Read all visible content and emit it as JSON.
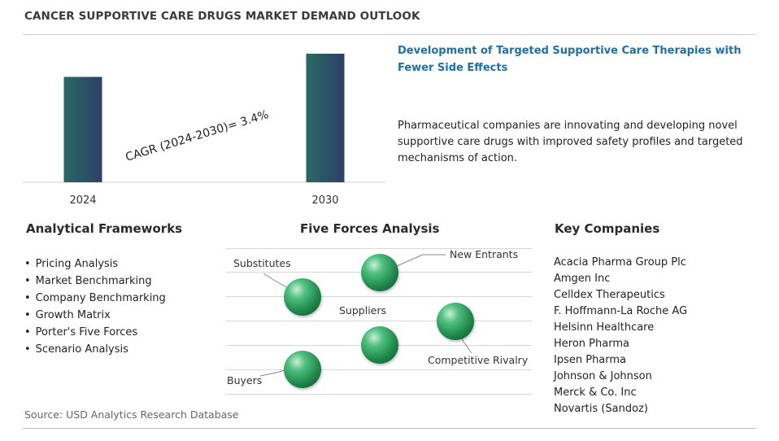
{
  "title": "CANCER SUPPORTIVE CARE DRUGS MARKET DEMAND OUTLOOK",
  "chart_data": {
    "type": "bar",
    "categories": [
      "2024",
      "2030"
    ],
    "values": [
      1.0,
      1.22
    ],
    "annotation": "CAGR (2024-2030)=  3.4%",
    "colors": [
      "#2a6a63",
      "#2c3f68"
    ]
  },
  "insight": {
    "title": "Development of Targeted Supportive Care Therapies with Fewer Side Effects",
    "text": "Pharmaceutical companies are innovating and developing novel supportive care drugs with improved safety profiles and targeted mechanisms of action."
  },
  "frameworks": {
    "heading": "Analytical Frameworks",
    "items": [
      "Pricing Analysis",
      "Market Benchmarking",
      "Company Benchmarking",
      "Growth Matrix",
      "Porter's Five Forces",
      "Scenario Analysis"
    ]
  },
  "five_forces": {
    "heading": "Five Forces Analysis",
    "labels": {
      "substitutes": "Substitutes",
      "new_entrants": "New Entrants",
      "suppliers": "Suppliers",
      "competitive_rivalry": "Competitive Rivalry",
      "buyers": "Buyers"
    }
  },
  "companies": {
    "heading": "Key Companies",
    "items": [
      "Acacia Pharma Group Plc",
      "Amgen Inc",
      "Celldex Therapeutics",
      "F. Hoffmann-La Roche AG",
      "Helsinn Healthcare",
      "Heron Pharma",
      "Ipsen Pharma",
      "Johnson & Johnson",
      "Merck & Co. Inc",
      "Novartis (Sandoz)"
    ]
  },
  "source": "Source: USD Analytics Research Database"
}
